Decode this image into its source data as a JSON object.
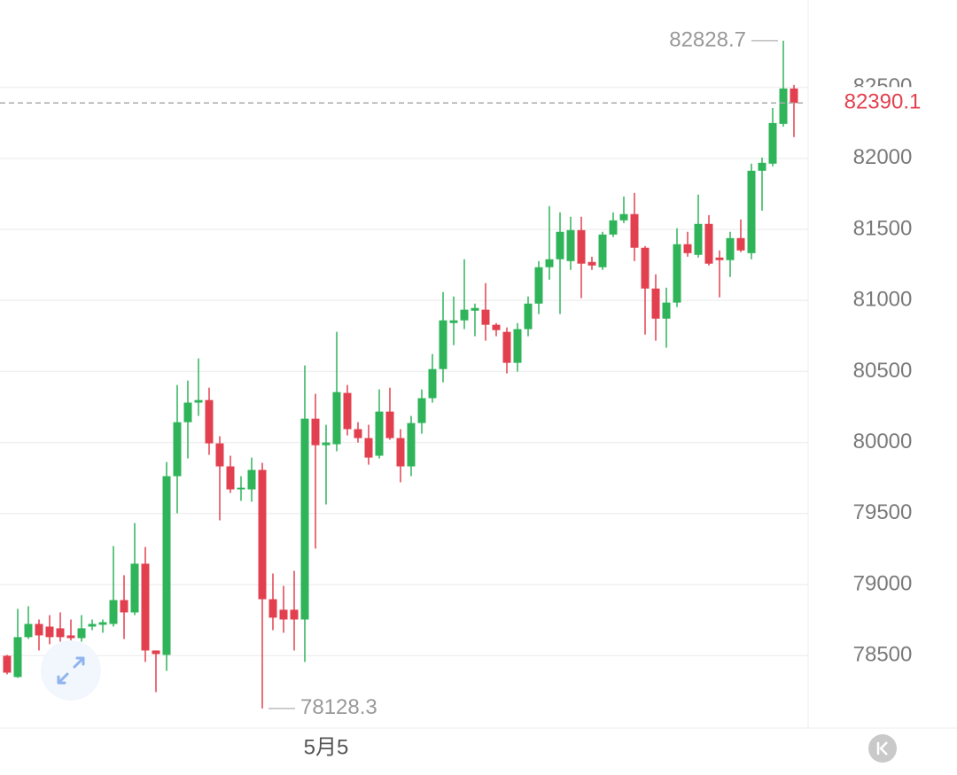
{
  "chart_data": {
    "type": "candlestick",
    "categories": [
      null,
      null,
      null,
      null,
      null,
      null,
      null,
      null,
      null,
      null,
      null,
      null,
      null,
      null,
      null,
      null,
      null,
      null,
      null,
      null,
      null,
      null,
      null,
      null,
      null,
      null,
      null,
      null,
      null,
      null,
      "5月5",
      null,
      null,
      null,
      null,
      null,
      null,
      null,
      null,
      null,
      null,
      null,
      null,
      null,
      null,
      null,
      null,
      null,
      null,
      null,
      null,
      null,
      null,
      null,
      null,
      null,
      null,
      null,
      null,
      null,
      null,
      null,
      null,
      null,
      null,
      null,
      null,
      null,
      null,
      null,
      null,
      null,
      null,
      null,
      null
    ],
    "open": [
      78499,
      78349,
      78630,
      78723,
      78704,
      78692,
      78642,
      78623,
      78704,
      78717,
      78723,
      78891,
      78804,
      79147,
      78536,
      78505,
      79763,
      80143,
      80281,
      80299,
      79994,
      79832,
      79670,
      79670,
      79807,
      78897,
      78823,
      78823,
      78754,
      80168,
      79981,
      79988,
      80349,
      80094,
      80031,
      79907,
      80218,
      80031,
      79832,
      80137,
      80312,
      80517,
      80841,
      80860,
      80928,
      80935,
      80829,
      80779,
      80561,
      80798,
      80978,
      81234,
      81290,
      81277,
      81495,
      81271,
      81234,
      81464,
      81564,
      81608,
      81371,
      81084,
      80872,
      80985,
      81396,
      81321,
      81539,
      81302,
      81284,
      81439,
      81333,
      81913,
      81963,
      82243,
      82492
    ],
    "high": [
      78505,
      78829,
      78848,
      78754,
      78785,
      78804,
      78754,
      78785,
      78754,
      78754,
      79271,
      79066,
      79433,
      79265,
      78536,
      79863,
      80405,
      80436,
      80592,
      80386,
      80044,
      79907,
      79763,
      79894,
      79857,
      79078,
      78991,
      79097,
      80542,
      80343,
      80125,
      80779,
      80405,
      80143,
      80125,
      80374,
      80386,
      80094,
      80187,
      80374,
      80623,
      81059,
      81028,
      81290,
      80978,
      81122,
      80841,
      80810,
      80841,
      81028,
      81277,
      81664,
      81620,
      81589,
      81589,
      81308,
      81483,
      81620,
      81732,
      81757,
      81383,
      81184,
      81090,
      81508,
      81483,
      81745,
      81601,
      81352,
      81483,
      81570,
      81963,
      82006,
      82355,
      82828.7,
      82517
    ],
    "low": [
      78368,
      78343,
      78617,
      78536,
      78580,
      78598,
      78567,
      78598,
      78679,
      78661,
      78704,
      78617,
      78785,
      78455,
      78243,
      78393,
      79502,
      79888,
      80187,
      79913,
      79452,
      79645,
      79589,
      79583,
      78128.3,
      78679,
      78661,
      78536,
      78455,
      79253,
      79564,
      79938,
      80050,
      80000,
      79844,
      79888,
      80019,
      79720,
      79763,
      80062,
      80281,
      80424,
      80685,
      80798,
      80748,
      80717,
      80748,
      80486,
      80499,
      80748,
      80904,
      81146,
      80904,
      81215,
      81016,
      81215,
      81215,
      81446,
      81545,
      81277,
      80760,
      80717,
      80667,
      80953,
      81308,
      81302,
      81246,
      81022,
      81165,
      81340,
      81290,
      81632,
      81944,
      82224,
      82150
    ],
    "close": [
      78380,
      78630,
      78723,
      78642,
      78630,
      78630,
      78623,
      78692,
      78723,
      78735,
      78891,
      78804,
      79147,
      78536,
      78511,
      79763,
      80143,
      80281,
      80299,
      79994,
      79832,
      79670,
      79682,
      79807,
      78897,
      78767,
      78754,
      78754,
      80168,
      79981,
      80000,
      80355,
      80094,
      80031,
      79894,
      80218,
      80031,
      79832,
      80137,
      80312,
      80517,
      80860,
      80860,
      80935,
      80947,
      80829,
      80791,
      80561,
      80798,
      80978,
      81234,
      81290,
      81483,
      81495,
      81259,
      81246,
      81464,
      81564,
      81608,
      81371,
      81084,
      80872,
      80985,
      81396,
      81333,
      81539,
      81259,
      81284,
      81439,
      81352,
      81913,
      81969,
      82249,
      82492,
      82390.1
    ],
    "up_color": "#2fb45a",
    "down_color": "#e2404f",
    "ylim": [
      77990,
      83115
    ],
    "yticks": [
      78500,
      79000,
      79500,
      80000,
      80500,
      81000,
      81500,
      82000,
      82500
    ],
    "grid": true
  }
}
